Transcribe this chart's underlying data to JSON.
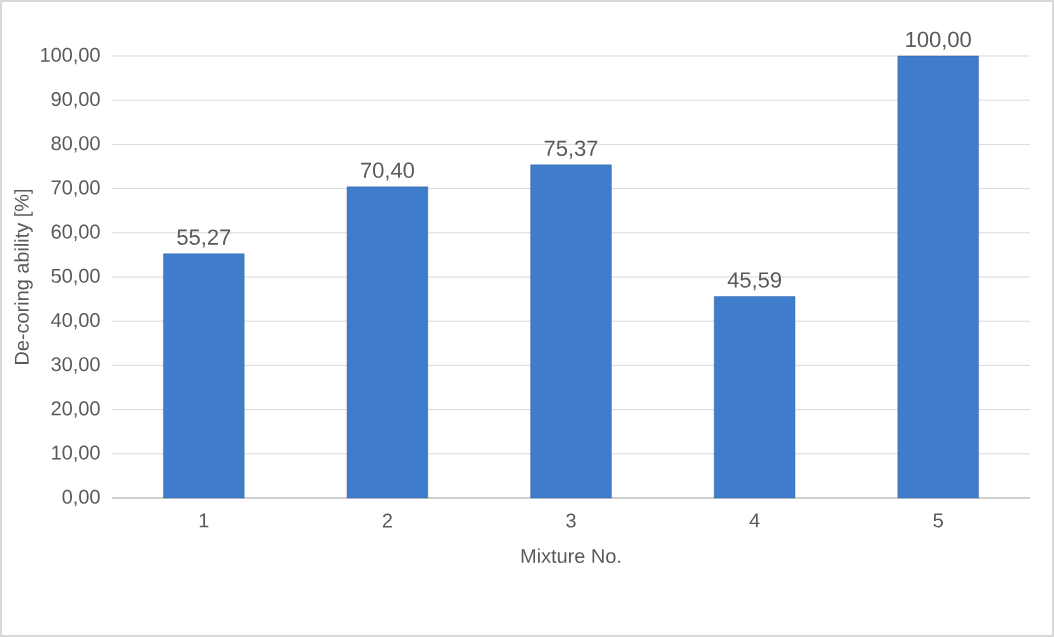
{
  "chart_data": {
    "type": "bar",
    "xlabel": "Mixture No.",
    "ylabel": "De-coring ability [%]",
    "categories": [
      "1",
      "2",
      "3",
      "4",
      "5"
    ],
    "values": [
      55.27,
      70.4,
      75.37,
      45.59,
      100.0
    ],
    "value_labels": [
      "55,27",
      "70,40",
      "75,37",
      "45,59",
      "100,00"
    ],
    "color": "#3f7dcc",
    "ylim": [
      0,
      100
    ],
    "yticks": [
      {
        "value": 0,
        "label": "0,00"
      },
      {
        "value": 10,
        "label": "10,00"
      },
      {
        "value": 20,
        "label": "20,00"
      },
      {
        "value": 30,
        "label": "30,00"
      },
      {
        "value": 40,
        "label": "40,00"
      },
      {
        "value": 50,
        "label": "50,00"
      },
      {
        "value": 60,
        "label": "60,00"
      },
      {
        "value": 70,
        "label": "70,00"
      },
      {
        "value": 80,
        "label": "80,00"
      },
      {
        "value": 90,
        "label": "90,00"
      },
      {
        "value": 100,
        "label": "100,00"
      }
    ],
    "grid": "y"
  }
}
